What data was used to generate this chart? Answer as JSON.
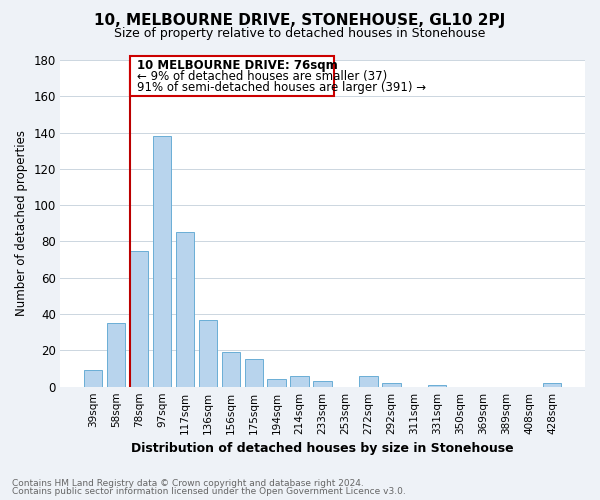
{
  "title": "10, MELBOURNE DRIVE, STONEHOUSE, GL10 2PJ",
  "subtitle": "Size of property relative to detached houses in Stonehouse",
  "xlabel": "Distribution of detached houses by size in Stonehouse",
  "ylabel": "Number of detached properties",
  "bar_labels": [
    "39sqm",
    "58sqm",
    "78sqm",
    "97sqm",
    "117sqm",
    "136sqm",
    "156sqm",
    "175sqm",
    "194sqm",
    "214sqm",
    "233sqm",
    "253sqm",
    "272sqm",
    "292sqm",
    "311sqm",
    "331sqm",
    "350sqm",
    "369sqm",
    "389sqm",
    "408sqm",
    "428sqm"
  ],
  "bar_values": [
    9,
    35,
    75,
    138,
    85,
    37,
    19,
    15,
    4,
    6,
    3,
    0,
    6,
    2,
    0,
    1,
    0,
    0,
    0,
    0,
    2
  ],
  "bar_color": "#b8d4ed",
  "bar_edge_color": "#6aaed6",
  "vline_x_index": 2,
  "vline_color": "#bb0000",
  "ylim": [
    0,
    180
  ],
  "yticks": [
    0,
    20,
    40,
    60,
    80,
    100,
    120,
    140,
    160,
    180
  ],
  "annotation_title": "10 MELBOURNE DRIVE: 76sqm",
  "annotation_line1": "← 9% of detached houses are smaller (37)",
  "annotation_line2": "91% of semi-detached houses are larger (391) →",
  "annotation_box_color": "#ffffff",
  "annotation_box_edge": "#cc0000",
  "footer_line1": "Contains HM Land Registry data © Crown copyright and database right 2024.",
  "footer_line2": "Contains public sector information licensed under the Open Government Licence v3.0.",
  "bg_color": "#eef2f7",
  "plot_bg_color": "#ffffff",
  "grid_color": "#ccd6e0"
}
